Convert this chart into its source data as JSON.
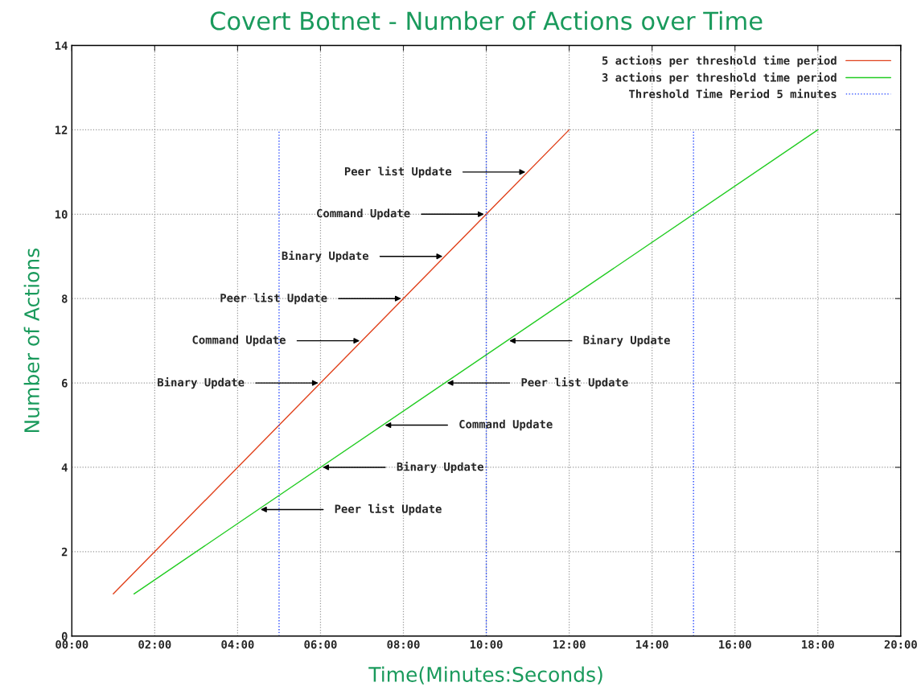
{
  "chart_data": {
    "type": "line",
    "title": "Covert Botnet - Number of Actions over Time",
    "xlabel": "Time(Minutes:Seconds)",
    "ylabel": "Number of Actions",
    "xlim": [
      0,
      20
    ],
    "ylim": [
      0,
      14
    ],
    "xticks": [
      {
        "value": 0,
        "label": "00:00"
      },
      {
        "value": 2,
        "label": "02:00"
      },
      {
        "value": 4,
        "label": "04:00"
      },
      {
        "value": 6,
        "label": "06:00"
      },
      {
        "value": 8,
        "label": "08:00"
      },
      {
        "value": 10,
        "label": "10:00"
      },
      {
        "value": 12,
        "label": "12:00"
      },
      {
        "value": 14,
        "label": "14:00"
      },
      {
        "value": 16,
        "label": "16:00"
      },
      {
        "value": 18,
        "label": "18:00"
      },
      {
        "value": 20,
        "label": "20:00"
      }
    ],
    "yticks": [
      0,
      2,
      4,
      6,
      8,
      10,
      12,
      14
    ],
    "grid": true,
    "legend": "top right",
    "marker": "none",
    "series": [
      {
        "name": "5 actions per threshold time period",
        "color": "#e0401a",
        "x": [
          1,
          12
        ],
        "values": [
          1,
          12
        ],
        "line_style": "solid"
      },
      {
        "name": "3 actions per threshold time period",
        "color": "#22cc22",
        "x": [
          1.5,
          18
        ],
        "values": [
          1,
          12
        ],
        "line_style": "solid"
      },
      {
        "name": "Threshold Time Period 5 minutes",
        "color": "#2244ff",
        "x": [
          5,
          5,
          null,
          10,
          10,
          null,
          15,
          15
        ],
        "values": [
          0,
          12,
          null,
          0,
          12,
          null,
          0,
          12
        ],
        "line_style": "dotted"
      }
    ],
    "annotations": [
      {
        "text": "Binary Update",
        "x": 6,
        "y": 6
      },
      {
        "text": "Command Update",
        "x": 7,
        "y": 7
      },
      {
        "text": "Peer list Update",
        "x": 8,
        "y": 8
      },
      {
        "text": "Binary Update",
        "x": 9,
        "y": 9
      },
      {
        "text": "Command Update",
        "x": 10,
        "y": 10
      },
      {
        "text": "Peer list Update",
        "x": 11,
        "y": 11
      },
      {
        "text": "Peer list Update",
        "x": 4.5,
        "y": 3
      },
      {
        "text": "Binary Update",
        "x": 6,
        "y": 4
      },
      {
        "text": "Command Update",
        "x": 7.5,
        "y": 5
      },
      {
        "text": "Peer list Update",
        "x": 9,
        "y": 6
      },
      {
        "text": "Binary Update",
        "x": 10.5,
        "y": 7
      }
    ]
  }
}
